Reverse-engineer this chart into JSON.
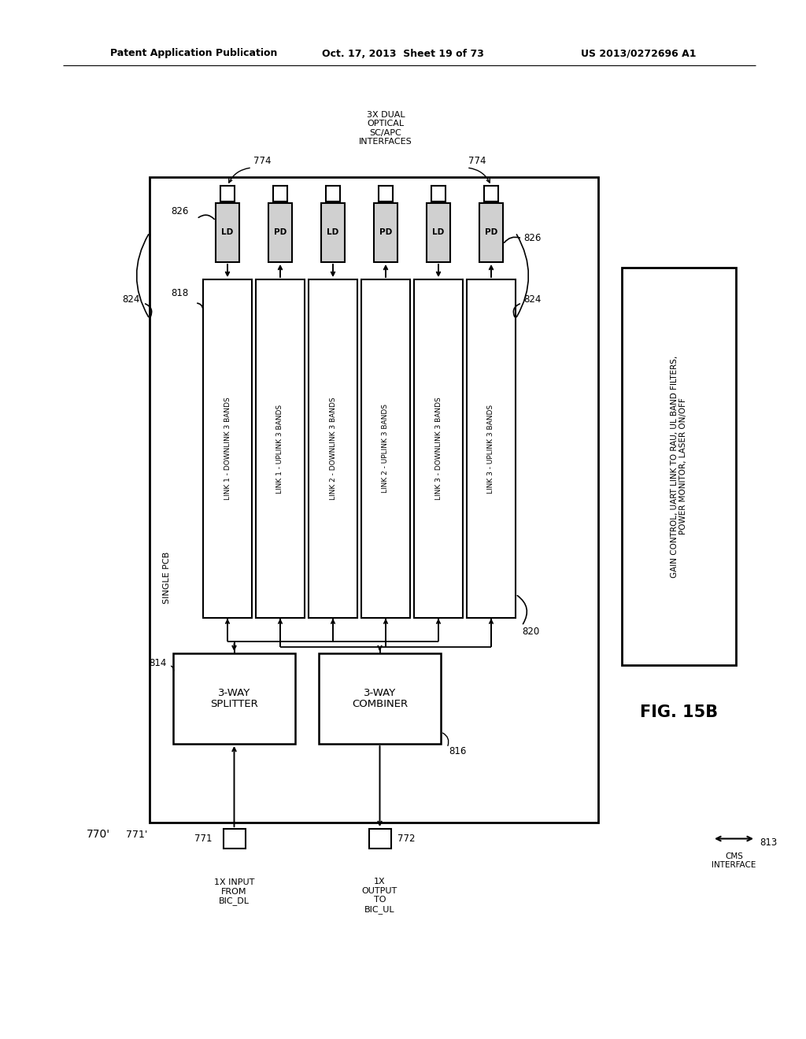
{
  "bg_color": "#ffffff",
  "header_left": "Patent Application Publication",
  "header_mid": "Oct. 17, 2013  Sheet 19 of 73",
  "header_right": "US 2013/0272696 A1",
  "fig_label": "FIG. 15B",
  "label_770": "770'",
  "label_771p": "771'",
  "label_771": "771",
  "label_772": "772",
  "label_813": "813",
  "label_814": "814",
  "label_816": "816",
  "label_818": "818",
  "label_820": "820",
  "label_824": "824",
  "label_826": "826",
  "label_774": "774",
  "text_single_pcb": "SINGLE PCB",
  "text_splitter": "3-WAY\nSPLITTER",
  "text_combiner": "3-WAY\nCOMBINER",
  "text_gain": "GAIN CONTROL, UART LINK TO RAU, UL BAND FILTERS,\nPOWER MONITOR, LASER ON/OFF",
  "text_cms": "CMS\nINTERFACE",
  "text_input": "1X INPUT\nFROM\nBIC_DL",
  "text_output": "1X\nOUTPUT\nTO\nBIC_UL",
  "text_optical": "3X DUAL\nOPTICAL\nSC/APC\nINTERFACES",
  "links": [
    "LINK 1 - DOWNLINK 3 BANDS",
    "LINK 1 - UPLINK 3 BANDS",
    "LINK 2 - DOWNLINK 3 BANDS",
    "LINK 2 - UPLINK 3 BANDS",
    "LINK 3 - DOWNLINK 3 BANDS",
    "LINK 3 - UPLINK 3 BANDS"
  ]
}
